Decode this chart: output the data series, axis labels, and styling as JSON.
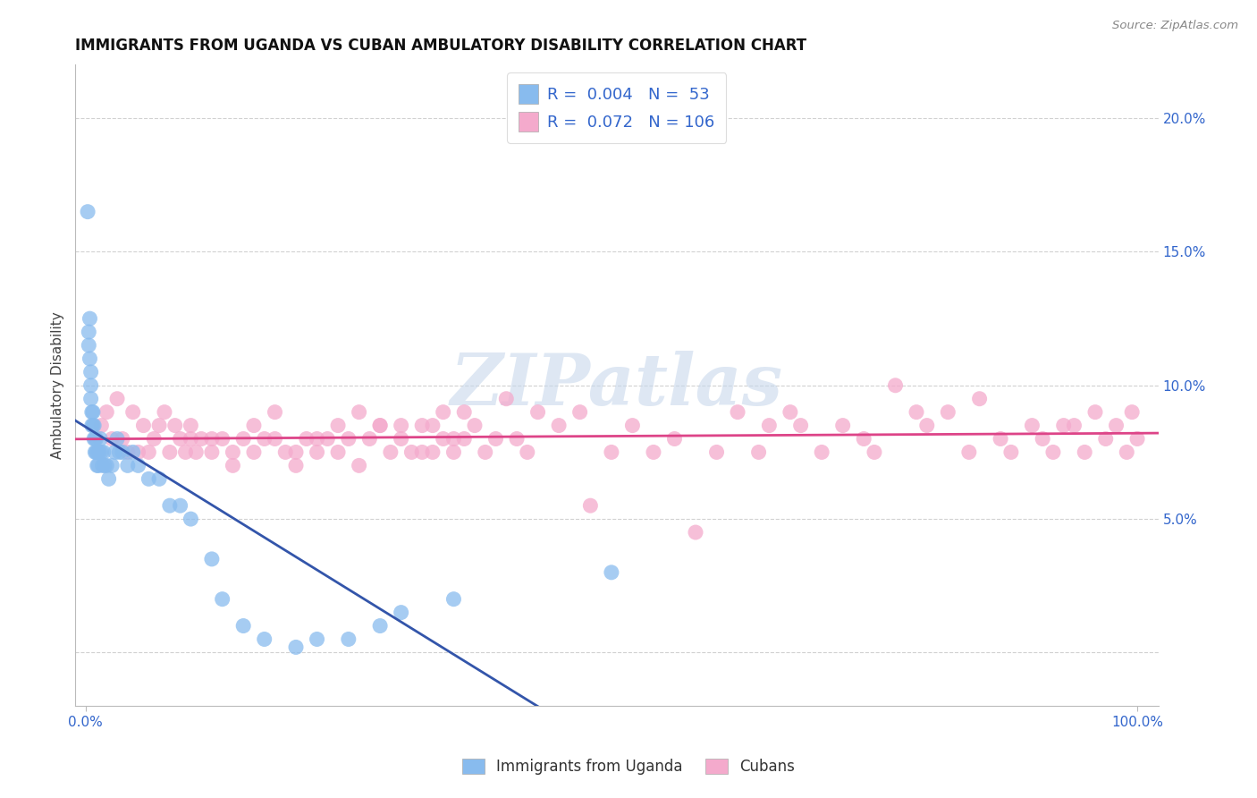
{
  "title": "IMMIGRANTS FROM UGANDA VS CUBAN AMBULATORY DISABILITY CORRELATION CHART",
  "source": "Source: ZipAtlas.com",
  "ylabel": "Ambulatory Disability",
  "series1_label": "Immigrants from Uganda",
  "series1_color": "#88BBEE",
  "series1_edge": "#88BBEE",
  "series1_R": 0.004,
  "series1_N": 53,
  "series1_line_color": "#3355AA",
  "series2_label": "Cubans",
  "series2_color": "#F4AACC",
  "series2_edge": "#F4AACC",
  "series2_R": 0.072,
  "series2_N": 106,
  "series2_line_color": "#DD4488",
  "legend_text_color": "#3366CC",
  "grid_color": "#CCCCCC",
  "watermark_color": "#C8D8EC",
  "background_color": "#FFFFFF",
  "xlim": [
    -1,
    102
  ],
  "ylim": [
    -2,
    22
  ],
  "yticks_right": [
    5.0,
    10.0,
    15.0,
    20.0
  ],
  "ytick_right_labels": [
    "5.0%",
    "10.0%",
    "15.0%",
    "20.0%"
  ],
  "xtick_labels_show": [
    "0.0%",
    "100.0%"
  ],
  "xtick_pos_show": [
    0,
    100
  ],
  "uganda_x": [
    0.2,
    0.3,
    0.3,
    0.4,
    0.4,
    0.5,
    0.5,
    0.5,
    0.6,
    0.6,
    0.7,
    0.7,
    0.8,
    0.8,
    0.9,
    0.9,
    1.0,
    1.0,
    1.1,
    1.1,
    1.2,
    1.3,
    1.4,
    1.5,
    1.6,
    1.7,
    1.8,
    2.0,
    2.2,
    2.5,
    2.8,
    3.0,
    3.2,
    3.5,
    4.0,
    4.5,
    5.0,
    6.0,
    7.0,
    8.0,
    9.0,
    10.0,
    12.0,
    13.0,
    15.0,
    17.0,
    20.0,
    22.0,
    25.0,
    28.0,
    30.0,
    35.0,
    50.0
  ],
  "uganda_y": [
    16.5,
    12.0,
    11.5,
    11.0,
    12.5,
    10.5,
    9.5,
    10.0,
    9.0,
    8.5,
    8.5,
    9.0,
    8.0,
    8.5,
    7.5,
    8.0,
    7.5,
    8.0,
    7.5,
    7.0,
    7.0,
    7.5,
    8.0,
    7.5,
    7.0,
    7.5,
    7.0,
    7.0,
    6.5,
    7.0,
    7.5,
    8.0,
    7.5,
    7.5,
    7.0,
    7.5,
    7.0,
    6.5,
    6.5,
    5.5,
    5.5,
    5.0,
    3.5,
    2.0,
    1.0,
    0.5,
    0.2,
    0.5,
    0.5,
    1.0,
    1.5,
    2.0,
    3.0
  ],
  "cubans_x": [
    1.5,
    2.0,
    2.5,
    3.0,
    3.5,
    4.0,
    4.5,
    5.0,
    5.5,
    6.0,
    6.5,
    7.0,
    7.5,
    8.0,
    8.5,
    9.0,
    9.5,
    10.0,
    10.5,
    11.0,
    12.0,
    13.0,
    14.0,
    15.0,
    16.0,
    17.0,
    18.0,
    19.0,
    20.0,
    21.0,
    22.0,
    23.0,
    24.0,
    25.0,
    26.0,
    27.0,
    28.0,
    29.0,
    30.0,
    31.0,
    32.0,
    33.0,
    34.0,
    35.0,
    36.0,
    37.0,
    38.0,
    39.0,
    40.0,
    41.0,
    42.0,
    43.0,
    45.0,
    47.0,
    48.0,
    50.0,
    52.0,
    54.0,
    56.0,
    58.0,
    60.0,
    62.0,
    64.0,
    65.0,
    67.0,
    68.0,
    70.0,
    72.0,
    74.0,
    75.0,
    77.0,
    79.0,
    80.0,
    82.0,
    84.0,
    85.0,
    87.0,
    88.0,
    90.0,
    91.0,
    93.0,
    95.0,
    96.0,
    97.0,
    98.0,
    99.0,
    99.5,
    100.0,
    10.0,
    12.0,
    14.0,
    16.0,
    18.0,
    20.0,
    22.0,
    24.0,
    26.0,
    28.0,
    30.0,
    32.0,
    33.0,
    34.0,
    35.0,
    36.0,
    92.0,
    94.0
  ],
  "cubans_y": [
    8.5,
    9.0,
    8.0,
    9.5,
    8.0,
    7.5,
    9.0,
    7.5,
    8.5,
    7.5,
    8.0,
    8.5,
    9.0,
    7.5,
    8.5,
    8.0,
    7.5,
    8.0,
    7.5,
    8.0,
    7.5,
    8.0,
    7.0,
    8.0,
    7.5,
    8.0,
    9.0,
    7.5,
    7.0,
    8.0,
    7.5,
    8.0,
    8.5,
    8.0,
    7.0,
    8.0,
    8.5,
    7.5,
    8.5,
    7.5,
    8.5,
    7.5,
    8.0,
    8.0,
    9.0,
    8.5,
    7.5,
    8.0,
    9.5,
    8.0,
    7.5,
    9.0,
    8.5,
    9.0,
    5.5,
    7.5,
    8.5,
    7.5,
    8.0,
    4.5,
    7.5,
    9.0,
    7.5,
    8.5,
    9.0,
    8.5,
    7.5,
    8.5,
    8.0,
    7.5,
    10.0,
    9.0,
    8.5,
    9.0,
    7.5,
    9.5,
    8.0,
    7.5,
    8.5,
    8.0,
    8.5,
    7.5,
    9.0,
    8.0,
    8.5,
    7.5,
    9.0,
    8.0,
    8.5,
    8.0,
    7.5,
    8.5,
    8.0,
    7.5,
    8.0,
    7.5,
    9.0,
    8.5,
    8.0,
    7.5,
    8.5,
    9.0,
    7.5,
    8.0,
    7.5,
    8.5
  ]
}
